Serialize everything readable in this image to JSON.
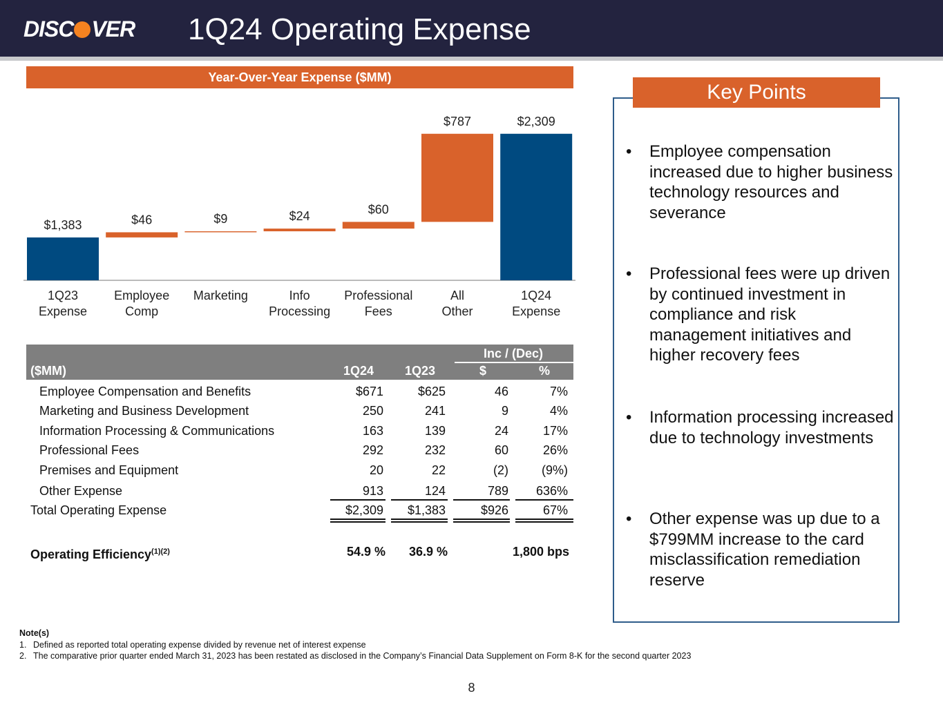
{
  "header": {
    "logo_left": "DISC",
    "logo_right": "VER",
    "title": "1Q24 Operating Expense"
  },
  "chart_data": {
    "type": "waterfall",
    "title": "Year-Over-Year Expense ($MM)",
    "categories": [
      "1Q23\nExpense",
      "Employee\nComp",
      "Marketing",
      "Info\nProcessing",
      "Professional\nFees",
      "All\nOther",
      "1Q24\nExpense"
    ],
    "values": [
      1383,
      46,
      9,
      24,
      60,
      787,
      2309
    ],
    "value_labels": [
      "$1,383",
      "$46",
      "$9",
      "$24",
      "$60",
      "$787",
      "$2,309"
    ],
    "total_color": "#004a80",
    "color": "#d9622b",
    "ylim": [
      1000,
      2400
    ]
  },
  "table": {
    "header_group": "Inc / (Dec)",
    "columns": [
      "($MM)",
      "1Q24",
      "1Q23",
      "$",
      "%"
    ],
    "rows": [
      [
        "Employee Compensation and Benefits",
        "$671",
        "$625",
        "46",
        "7%"
      ],
      [
        "Marketing and Business Development",
        "250",
        "241",
        "9",
        "4%"
      ],
      [
        "Information Processing & Communications",
        "163",
        "139",
        "24",
        "17%"
      ],
      [
        "Professional Fees",
        "292",
        "232",
        "60",
        "26%"
      ],
      [
        "Premises and Equipment",
        "20",
        "22",
        "(2)",
        "(9%)"
      ],
      [
        "Other Expense",
        "913",
        "124",
        "789",
        "636%"
      ]
    ],
    "total": [
      "Total Operating Expense",
      "$2,309",
      "$1,383",
      "$926",
      "67%"
    ],
    "efficiency": {
      "label": "Operating Efficiency",
      "superscript": "(1)(2)",
      "values": [
        "54.9 %",
        "36.9 %",
        "1,800 bps"
      ]
    }
  },
  "key_points": {
    "title": "Key Points",
    "bullet": "•",
    "items": [
      "Employee compensation increased due to higher business technology resources and severance",
      "Professional fees were up driven by continued investment in compliance and risk management initiatives and higher recovery fees",
      "Information processing increased due to technology investments",
      "Other expense was up due to a $799MM increase to the card misclassification remediation reserve"
    ]
  },
  "notes": {
    "title": "Note(s)",
    "items": [
      {
        "number": "1.",
        "text": "Defined as reported total operating expense divided by revenue net of interest expense"
      },
      {
        "number": "2.",
        "text": "The comparative prior quarter ended March 31, 2023 has been restated as disclosed in the Company’s Financial Data Supplement on Form 8-K for the second quarter 2023"
      }
    ]
  },
  "page_number": "8"
}
